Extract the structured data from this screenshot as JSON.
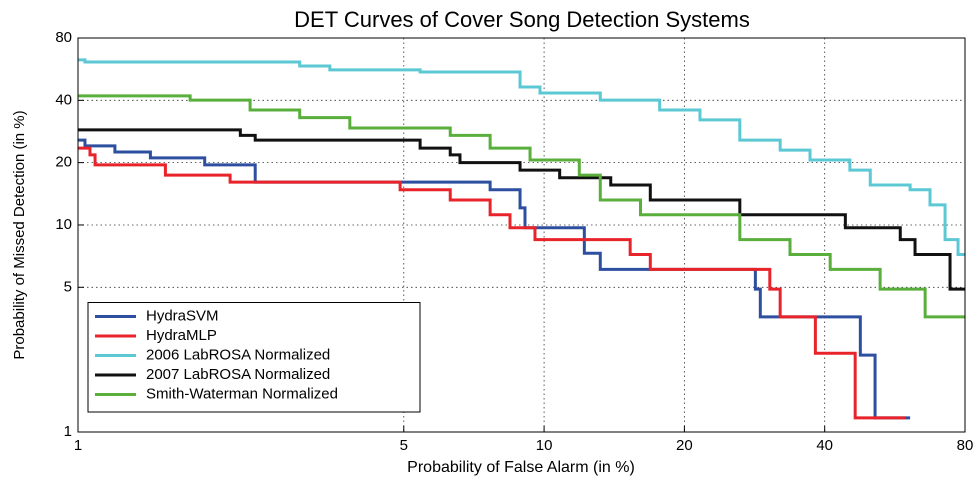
{
  "chart_data": {
    "type": "line",
    "title": "DET Curves of Cover Song Detection Systems",
    "xlabel": "Probability of False Alarm (in %)",
    "ylabel": "Probability of Missed Detection (in %)",
    "xscale": "log",
    "yscale": "log",
    "grid": true,
    "legend": "lower left",
    "xlim": [
      1,
      80
    ],
    "xticks": [
      1,
      5,
      10,
      20,
      40,
      80
    ],
    "ylim": [
      1,
      80
    ],
    "yticks": [
      1,
      5,
      10,
      20,
      40,
      80
    ],
    "series": [
      {
        "name": "HydraSVM",
        "color": "#2e4fa0",
        "x": [
          1,
          1.035,
          1.035,
          1.2,
          1.2,
          1.43,
          1.43,
          1.87,
          1.87,
          2.4,
          2.4,
          7.66,
          7.66,
          8.88,
          8.88,
          9.1,
          9.1,
          12.2,
          12.2,
          13.2,
          13.2,
          28.4,
          28.4,
          29.1,
          29.1,
          47.7,
          47.7,
          51.3,
          51.3,
          61
        ],
        "values": [
          25.7,
          25.7,
          24.1,
          24.1,
          22.5,
          22.5,
          21.1,
          21.1,
          19.5,
          19.5,
          16.1,
          16.1,
          14.8,
          14.8,
          12.1,
          12.1,
          9.7,
          9.7,
          7.3,
          7.3,
          6.1,
          6.1,
          4.9,
          4.9,
          3.6,
          3.6,
          2.35,
          2.35,
          1.17,
          1.17
        ]
      },
      {
        "name": "HydraMLP",
        "color": "#e8232a",
        "x": [
          1,
          1.061,
          1.061,
          1.088,
          1.088,
          1.54,
          1.54,
          2.12,
          2.12,
          4.91,
          4.91,
          6.29,
          6.29,
          7.66,
          7.66,
          8.45,
          8.45,
          9.56,
          9.56,
          15.3,
          15.3,
          16.9,
          16.9,
          30.5,
          30.5,
          32.1,
          32.1,
          38.2,
          38.2,
          46.5,
          46.5,
          59.5
        ],
        "values": [
          23.5,
          23.5,
          21.8,
          21.8,
          19.5,
          19.5,
          17.4,
          17.4,
          16.1,
          16.1,
          14.8,
          14.8,
          13.2,
          13.2,
          11.2,
          11.2,
          9.7,
          9.7,
          8.5,
          8.5,
          7.2,
          7.2,
          6.1,
          6.1,
          4.9,
          4.9,
          3.6,
          3.6,
          2.4,
          2.4,
          1.17,
          1.17
        ]
      },
      {
        "name": "2006 LabROSA Normalized",
        "color": "#5bc8d4",
        "x": [
          1,
          1.035,
          1.035,
          2.99,
          2.99,
          3.47,
          3.47,
          5.42,
          5.42,
          8.88,
          8.88,
          9.8,
          9.8,
          13.2,
          13.2,
          17.7,
          17.7,
          21.6,
          21.6,
          26.3,
          26.3,
          32.1,
          32.1,
          37.2,
          37.2,
          45.3,
          45.3,
          50.1,
          50.1,
          61,
          61,
          67.3,
          67.3,
          72.5,
          72.5,
          77.3,
          77.3,
          80
        ],
        "values": [
          62.7,
          62.7,
          61.3,
          61.3,
          58.6,
          58.6,
          56.1,
          56.1,
          54.8,
          54.8,
          46.4,
          46.4,
          43.4,
          43.4,
          40.1,
          40.1,
          35.9,
          35.9,
          32.2,
          32.2,
          25.7,
          25.7,
          23,
          23,
          20.6,
          20.6,
          18.4,
          18.4,
          15.6,
          15.6,
          14.8,
          14.8,
          12.5,
          12.5,
          8.5,
          8.5,
          7.2,
          7.2
        ]
      },
      {
        "name": "2007 LabROSA Normalized",
        "color": "#111111",
        "x": [
          1,
          2.23,
          2.23,
          2.4,
          2.4,
          5.42,
          5.42,
          6.29,
          6.29,
          6.6,
          6.6,
          8.88,
          8.88,
          10.8,
          10.8,
          13.9,
          13.9,
          16.9,
          16.9,
          26.3,
          26.3,
          44.3,
          44.3,
          58.1,
          58.1,
          62.5,
          62.5,
          74.3,
          74.3,
          80
        ],
        "values": [
          28.8,
          28.8,
          27.1,
          27.1,
          25.7,
          25.7,
          23.5,
          23.5,
          21.8,
          21.8,
          20,
          20,
          18.4,
          18.4,
          16.9,
          16.9,
          15.6,
          15.6,
          13.2,
          13.2,
          11.2,
          11.2,
          9.7,
          9.7,
          8.5,
          8.5,
          7.2,
          7.2,
          4.9,
          4.9
        ]
      },
      {
        "name": "Smith-Waterman Normalized",
        "color": "#5aaf3c",
        "x": [
          1,
          1.74,
          1.74,
          2.34,
          2.34,
          2.99,
          2.99,
          3.83,
          3.83,
          6.29,
          6.29,
          7.66,
          7.66,
          9.33,
          9.33,
          11.9,
          11.9,
          13.2,
          13.2,
          16.1,
          16.1,
          26.3,
          26.3,
          33.7,
          33.7,
          41.1,
          41.1,
          52.6,
          52.6,
          65.7,
          65.7,
          80
        ],
        "values": [
          42,
          42,
          40.1,
          40.1,
          35.9,
          35.9,
          33,
          33,
          29.4,
          29.4,
          27.1,
          27.1,
          23.5,
          23.5,
          20.6,
          20.6,
          17.4,
          17.4,
          13.2,
          13.2,
          11.2,
          11.2,
          8.5,
          8.5,
          7.2,
          7.2,
          6.1,
          6.1,
          4.9,
          4.9,
          3.6,
          3.6
        ]
      }
    ]
  }
}
